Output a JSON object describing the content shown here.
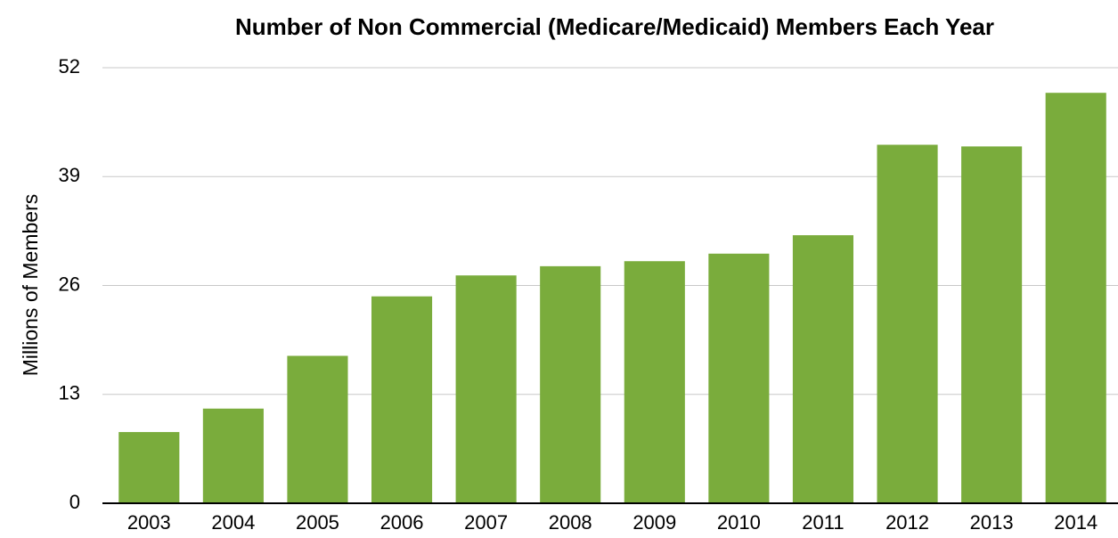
{
  "chart_data": {
    "type": "bar",
    "title": "Number of Non Commercial (Medicare/Medicaid) Members Each Year",
    "y_label": "Millions of Members",
    "categories": [
      "2003",
      "2004",
      "2005",
      "2006",
      "2007",
      "2008",
      "2009",
      "2010",
      "2011",
      "2012",
      "2013",
      "2014"
    ],
    "values": [
      8.5,
      11.3,
      17.6,
      24.7,
      27.2,
      28.3,
      28.9,
      29.8,
      32.0,
      42.8,
      42.6,
      49.0
    ],
    "color": "#7aac3c",
    "ylim": [
      0,
      52
    ],
    "yticks": [
      0,
      13,
      26,
      39,
      52
    ],
    "grid": true
  }
}
